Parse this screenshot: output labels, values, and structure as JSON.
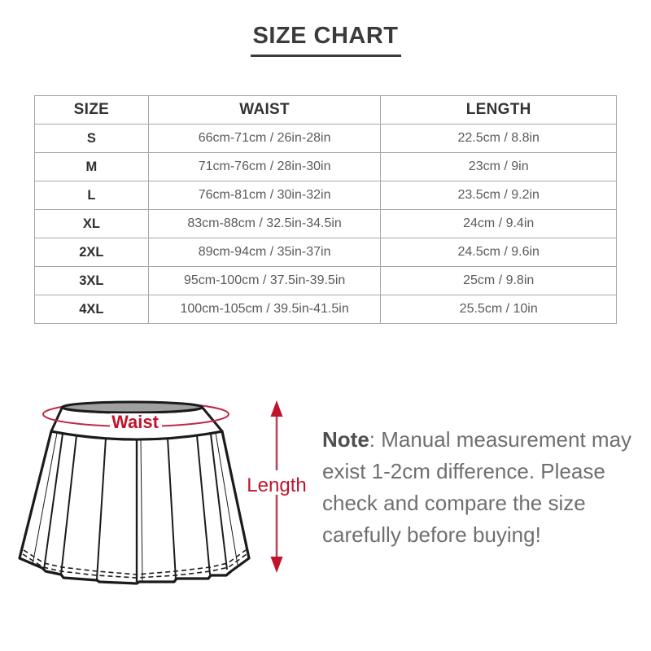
{
  "title": "SIZE CHART",
  "table": {
    "headers": [
      "SIZE",
      "WAIST",
      "LENGTH"
    ],
    "rows": [
      [
        "S",
        "66cm-71cm / 26in-28in",
        "22.5cm / 8.8in"
      ],
      [
        "M",
        "71cm-76cm / 28in-30in",
        "23cm / 9in"
      ],
      [
        "L",
        "76cm-81cm / 30in-32in",
        "23.5cm / 9.2in"
      ],
      [
        "XL",
        "83cm-88cm / 32.5in-34.5in",
        "24cm / 9.4in"
      ],
      [
        "2XL",
        "89cm-94cm / 35in-37in",
        "24.5cm / 9.6in"
      ],
      [
        "3XL",
        "95cm-100cm / 37.5in-39.5in",
        "25cm / 9.8in"
      ],
      [
        "4XL",
        "100cm-105cm / 39.5in-41.5in",
        "25.5cm / 10in"
      ]
    ]
  },
  "diagram": {
    "waist_label": "Waist",
    "length_label": "Length",
    "label_color": "#c0142e",
    "measure_line_color": "#c22843",
    "arrow_line_color": "#b3485a",
    "outline_color": "#1b1b1b",
    "waist_opening_fill": "#a0a0a0"
  },
  "note": {
    "label": "Note",
    "text": ": Manual measurement may exist 1-2cm difference. Please check and compare the size carefully before buying!"
  }
}
